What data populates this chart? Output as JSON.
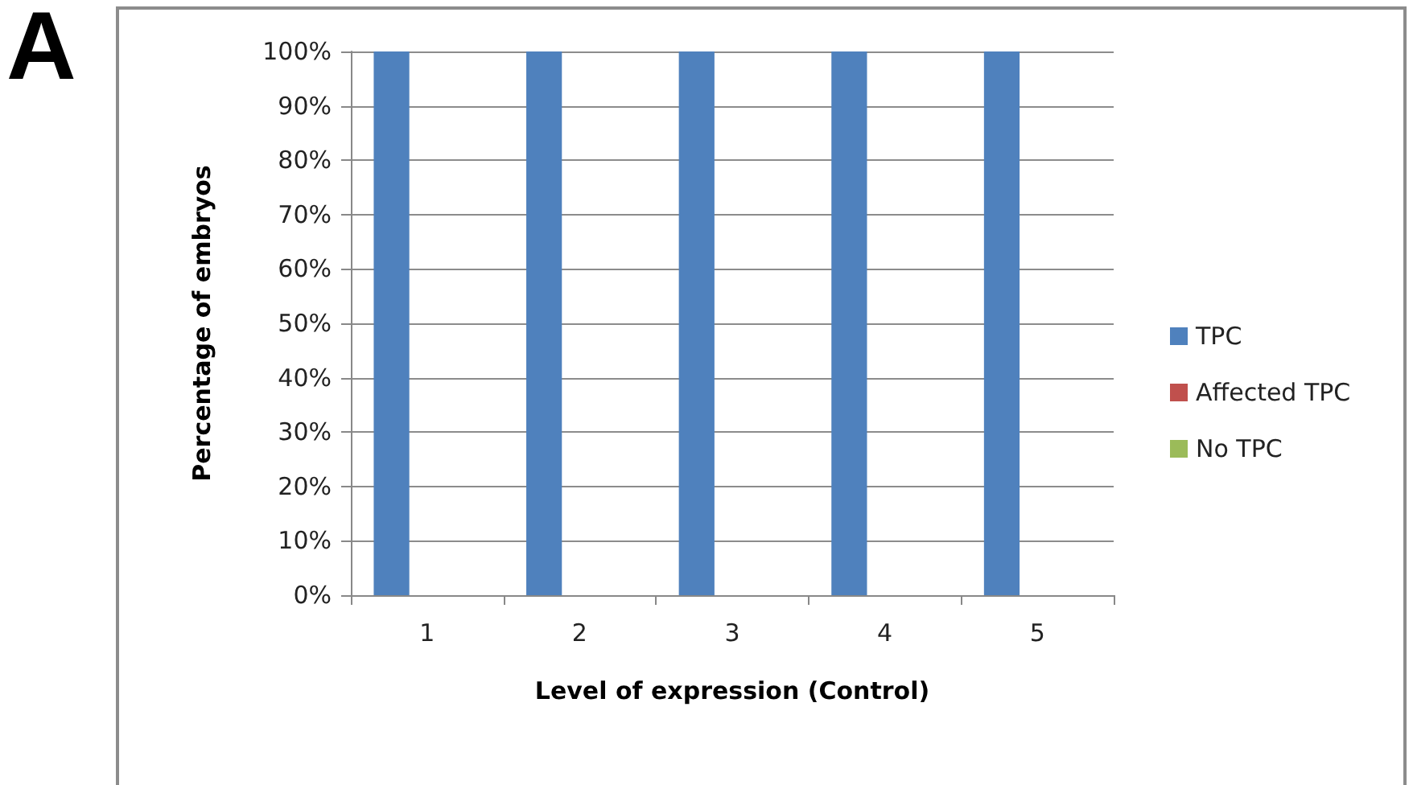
{
  "chart_data": {
    "type": "bar",
    "annotations": [
      "A"
    ],
    "xlabel": "Level of expression (Control)",
    "ylabel": "Percentage of embryos",
    "categories": [
      "1",
      "2",
      "3",
      "4",
      "5"
    ],
    "series": [
      {
        "name": "TPC",
        "color": "#4f81bd",
        "values": [
          100,
          100,
          100,
          100,
          100
        ]
      },
      {
        "name": "Affected TPC",
        "color": "#c0504d",
        "values": [
          0,
          0,
          0,
          0,
          0
        ]
      },
      {
        "name": "No TPC",
        "color": "#9bbb59",
        "values": [
          0,
          0,
          0,
          0,
          0
        ]
      }
    ],
    "ylim": [
      0,
      100
    ],
    "yticks": [
      {
        "value": 0,
        "label": "0%"
      },
      {
        "value": 10,
        "label": "10%"
      },
      {
        "value": 20,
        "label": "20%"
      },
      {
        "value": 30,
        "label": "30%"
      },
      {
        "value": 40,
        "label": "40%"
      },
      {
        "value": 50,
        "label": "50%"
      },
      {
        "value": 60,
        "label": "60%"
      },
      {
        "value": 70,
        "label": "70%"
      },
      {
        "value": 80,
        "label": "80%"
      },
      {
        "value": 90,
        "label": "90%"
      },
      {
        "value": 100,
        "label": "100%"
      }
    ],
    "grid": "y",
    "legend": "right"
  }
}
